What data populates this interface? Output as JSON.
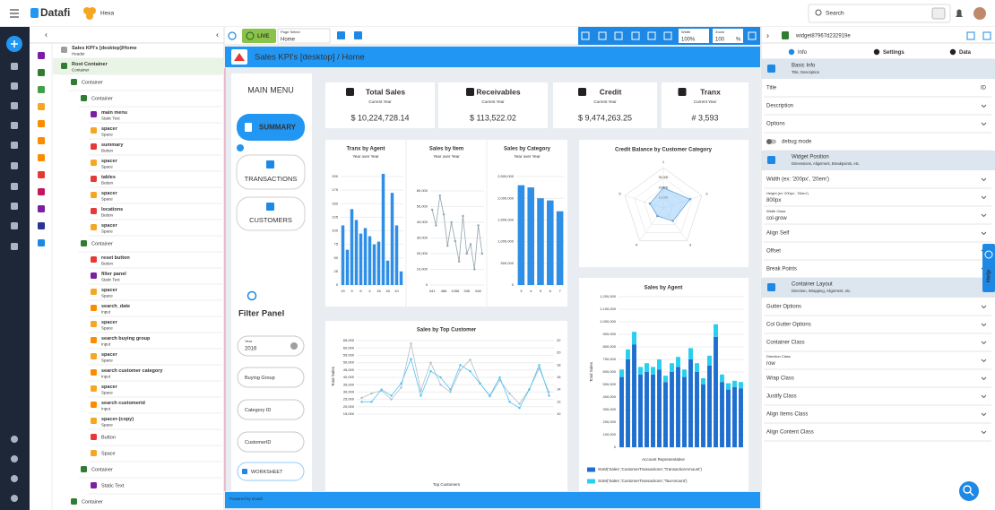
{
  "topbar": {
    "brand": "Datafi",
    "workspace": "Hexa",
    "search": "Search"
  },
  "tree": {
    "items": [
      {
        "name": "Sales KPI's [desktop]/Home",
        "type": "Header",
        "level": 0,
        "color": "#9e9e9e"
      },
      {
        "name": "Root Container",
        "type": "Container",
        "level": 0,
        "color": "#2e7d32"
      },
      {
        "type": "Container",
        "level": 1,
        "color": "#2e7d32"
      },
      {
        "type": "Container",
        "level": 2,
        "color": "#2e7d32"
      },
      {
        "name": "main menu",
        "type": "Static Text",
        "level": 3,
        "color": "#7b1fa2"
      },
      {
        "name": "spacer",
        "type": "Space",
        "level": 3,
        "color": "#f5a623"
      },
      {
        "name": "summary",
        "type": "Button",
        "level": 3,
        "color": "#e53935"
      },
      {
        "name": "spacer",
        "type": "Space",
        "level": 3,
        "color": "#f5a623"
      },
      {
        "name": "tables",
        "type": "Button",
        "level": 3,
        "color": "#e53935"
      },
      {
        "name": "spacer",
        "type": "Space",
        "level": 3,
        "color": "#f5a623"
      },
      {
        "name": "locations",
        "type": "Button",
        "level": 3,
        "color": "#e53935"
      },
      {
        "name": "spacer",
        "type": "Space",
        "level": 3,
        "color": "#f5a623"
      },
      {
        "type": "Container",
        "level": 2,
        "color": "#2e7d32"
      },
      {
        "name": "reset button",
        "type": "Button",
        "level": 3,
        "color": "#e53935"
      },
      {
        "name": "filter panel",
        "type": "Static Text",
        "level": 3,
        "color": "#7b1fa2"
      },
      {
        "name": "spacer",
        "type": "Space",
        "level": 3,
        "color": "#f5a623"
      },
      {
        "name": "search_date",
        "type": "Input",
        "level": 3,
        "color": "#fb8c00"
      },
      {
        "name": "spacer",
        "type": "Space",
        "level": 3,
        "color": "#f5a623"
      },
      {
        "name": "search buying group",
        "type": "Input",
        "level": 3,
        "color": "#fb8c00"
      },
      {
        "name": "spacer",
        "type": "Space",
        "level": 3,
        "color": "#f5a623"
      },
      {
        "name": "search customer category",
        "type": "Input",
        "level": 3,
        "color": "#fb8c00"
      },
      {
        "name": "spacer",
        "type": "Space",
        "level": 3,
        "color": "#f5a623"
      },
      {
        "name": "search customerid",
        "type": "Input",
        "level": 3,
        "color": "#fb8c00"
      },
      {
        "name": "spacer-(copy)",
        "type": "Space",
        "level": 3,
        "color": "#f5a623"
      },
      {
        "type": "Button",
        "level": 3,
        "color": "#e53935"
      },
      {
        "type": "Space",
        "level": 3,
        "color": "#f5a623"
      },
      {
        "type": "Container",
        "level": 2,
        "color": "#2e7d32"
      },
      {
        "type": "Static Text",
        "level": 3,
        "color": "#7b1fa2"
      },
      {
        "type": "Container",
        "level": 1,
        "color": "#2e7d32"
      }
    ]
  },
  "toolbar": {
    "live": "LIVE",
    "page_select_label": "Page Select",
    "page_select": "Home",
    "width_label": "Width",
    "width": "100%",
    "zoom_label": "Zoom",
    "zoom": "100",
    "zoom_unit": "%"
  },
  "canvas": {
    "title": "Sales KPI's [desktop] / Home",
    "footer": "Powered by Datafi"
  },
  "menu": {
    "title": "MAIN MENU",
    "buttons": [
      "SUMMARY",
      "TRANSACTIONS",
      "CUSTOMERS"
    ],
    "filter_title": "Filter Panel",
    "year_label": "Year",
    "year": "2016",
    "filters": [
      "Buying Group",
      "Category ID",
      "CustomerID"
    ],
    "worksheet": "WORKSHEET"
  },
  "kpis": [
    {
      "title": "Total Sales",
      "subtitle": "Current Year",
      "value": "$ 10,224,728.14"
    },
    {
      "title": "Receivables",
      "subtitle": "Current Year",
      "value": "$ 113,522.02"
    },
    {
      "title": "Credit",
      "subtitle": "Current Year",
      "value": "$ 9,474,263.25"
    },
    {
      "title": "Tranx",
      "subtitle": "Current Year",
      "value": "# 3,593"
    }
  ],
  "charts": [
    {
      "type": "bar",
      "title": "Tranx by Agent",
      "subtitle": "Year over Year",
      "color": "#2f8fe6",
      "categories": [
        "15",
        null,
        "9",
        null,
        "6",
        null,
        "4",
        null,
        "16",
        null,
        "18",
        null,
        "10",
        null
      ],
      "values": [
        110,
        65,
        140,
        120,
        95,
        105,
        90,
        75,
        80,
        205,
        45,
        170,
        110,
        25
      ],
      "ylim": [
        0,
        200
      ],
      "yticks": [
        0,
        25,
        50,
        75,
        100,
        125,
        150,
        175,
        200
      ],
      "grid": true
    },
    {
      "type": "line",
      "title": "Sales by Item",
      "subtitle": "Year over Year",
      "categories": [
        "341",
        null,
        null,
        "486",
        null,
        null,
        "1056",
        null,
        null,
        "335",
        null,
        null,
        "540",
        null
      ],
      "series": [
        {
          "color": "#90a4ae",
          "values": [
            48000,
            38000,
            57000,
            45000,
            25000,
            40000,
            28000,
            15000,
            44000,
            20000,
            26000,
            10000,
            38000,
            20000
          ]
        }
      ],
      "ylim": [
        0,
        60000
      ],
      "yticks": [
        0,
        {
          "value": 10000,
          "label": "10,000"
        },
        {
          "value": 20000,
          "label": "20,000"
        },
        {
          "value": 30000,
          "label": "30,000"
        },
        {
          "value": 40000,
          "label": "40,000"
        },
        {
          "value": 50000,
          "label": "50,000"
        },
        {
          "value": 60000,
          "label": "60,000"
        }
      ],
      "grid": true
    },
    {
      "type": "bar",
      "title": "Sales by Category",
      "subtitle": "Year over Year",
      "color": "#2f8fe6",
      "categories": [
        "3",
        "4",
        "5",
        "6",
        "7"
      ],
      "values": [
        2300000,
        2250000,
        2000000,
        1950000,
        1700000
      ],
      "ylim": [
        0,
        2500000
      ],
      "yticks": [
        0,
        {
          "value": 500000,
          "label": "500,000"
        },
        {
          "value": 1000000,
          "label": "1,000,000"
        },
        {
          "value": 1500000,
          "label": "1,500,000"
        },
        {
          "value": 2000000,
          "label": "2,000,000"
        },
        {
          "value": 2500000,
          "label": "2,500,000"
        }
      ],
      "grid": true
    },
    {
      "type": "radar",
      "title": "Credit Balance by Customer Category",
      "color": "#90caf9",
      "categories": [
        "1",
        "2",
        "3",
        "4",
        "5"
      ],
      "values": [
        20000,
        28000,
        16000,
        10000,
        14000
      ],
      "rlim": [
        0,
        40000
      ],
      "rticks": [
        {
          "value": 10000,
          "label": "10,000"
        },
        {
          "value": 20000,
          "label": "20,000"
        },
        {
          "value": 30000,
          "label": "30,000"
        }
      ]
    },
    {
      "type": "line",
      "title": "Sales by Top Customer",
      "xlabel": "Top Customers",
      "ylabel": "Total Sales",
      "series": [
        {
          "color": "#b0bec5",
          "values": [
            26000,
            29000,
            31000,
            25000,
            33000,
            63000,
            31000,
            50000,
            35000,
            30000,
            45000,
            52000,
            36000,
            27000,
            38000,
            29000,
            22000,
            32000,
            46000,
            30000
          ]
        },
        {
          "color": "#4fc3f7",
          "axis": "y2",
          "values": [
            12,
            12,
            14,
            13,
            15,
            19,
            13,
            17,
            16,
            14,
            18,
            17,
            15,
            13,
            16,
            12,
            11,
            14,
            18,
            13
          ]
        }
      ],
      "ylim": [
        15000,
        65000
      ],
      "yticks": [
        {
          "value": 15000,
          "label": "15,000"
        },
        {
          "value": 20000,
          "label": "20,000"
        },
        {
          "value": 25000,
          "label": "25,000"
        },
        {
          "value": 30000,
          "label": "30,000"
        },
        {
          "value": 35000,
          "label": "35,000"
        },
        {
          "value": 40000,
          "label": "40,000"
        },
        {
          "value": 45000,
          "label": "45,000"
        },
        {
          "value": 50000,
          "label": "50,000"
        },
        {
          "value": 55000,
          "label": "55,000"
        },
        {
          "value": 60000,
          "label": "60,000"
        },
        {
          "value": 65000,
          "label": "65,000"
        }
      ],
      "y2lim": [
        10,
        22
      ],
      "y2ticks": [
        10,
        12,
        14,
        16,
        18,
        20,
        22
      ],
      "grid": true
    },
    {
      "type": "bar",
      "title": "Sales by Agent",
      "xlabel": "Account Representative",
      "ylabel": "Total Sales",
      "legend": "bottom",
      "series": [
        {
          "name": "SUM('Sales','CustomerTransactions','TransactionAmount')",
          "color": "#1e6fd0",
          "values": [
            560000,
            700000,
            820000,
            580000,
            600000,
            580000,
            620000,
            520000,
            600000,
            640000,
            560000,
            700000,
            600000,
            500000,
            650000,
            880000,
            520000,
            460000,
            480000,
            470000
          ]
        },
        {
          "name": "SUM('Sales','CustomerTransactions','TaxAmount')",
          "color": "#26d0ee",
          "values": [
            60000,
            80000,
            100000,
            60000,
            70000,
            60000,
            80000,
            50000,
            70000,
            80000,
            60000,
            90000,
            70000,
            50000,
            80000,
            100000,
            60000,
            50000,
            50000,
            50000
          ]
        }
      ],
      "ylim": [
        0,
        1200000
      ],
      "yticks": [
        0,
        {
          "value": 100000,
          "label": "100,000"
        },
        {
          "value": 200000,
          "label": "200,000"
        },
        {
          "value": 300000,
          "label": "300,000"
        },
        {
          "value": 400000,
          "label": "400,000"
        },
        {
          "value": 500000,
          "label": "500,000"
        },
        {
          "value": 600000,
          "label": "600,000"
        },
        {
          "value": 700000,
          "label": "700,000"
        },
        {
          "value": 800000,
          "label": "800,000"
        },
        {
          "value": 900000,
          "label": "900,000"
        },
        {
          "value": 1000000,
          "label": "1,000,000"
        },
        {
          "value": 1100000,
          "label": "1,100,000"
        },
        {
          "value": 1200000,
          "label": "1,200,000"
        }
      ],
      "grid": true
    }
  ],
  "inspector": {
    "widget_id": "widget87967d232919e",
    "tabs": [
      "Info",
      "Settings",
      "Data"
    ],
    "help": "Help",
    "rows": [
      {
        "label": "Basic Info",
        "sub": "Title, Description"
      },
      {
        "label": "Title",
        "right": "ID"
      },
      {
        "label": "Description"
      },
      {
        "label": "Options"
      },
      {
        "label": "debug mode",
        "toggle": false
      },
      {
        "label": "Widget Position",
        "sub": "Dimensions, Alignment, Breakpoints, etc."
      },
      {
        "label": "Width (ex: '200px', '20em')"
      },
      {
        "label": "Height (ex '200px', '20em')",
        "value": "800px"
      },
      {
        "label": "Width Class",
        "value": "col-grow"
      },
      {
        "label": "Align Self"
      },
      {
        "label": "Offset"
      },
      {
        "label": "Break Points"
      },
      {
        "label": "Container Layout",
        "sub": "Direction, Wrapping, Alignment, etc."
      },
      {
        "label": "Gutter Options"
      },
      {
        "label": "Col Gutter Options"
      },
      {
        "label": "Container Class"
      },
      {
        "label": "Direction Class",
        "value": "row"
      },
      {
        "label": "Wrap Class"
      },
      {
        "label": "Justify Class"
      },
      {
        "label": "Align Items Class"
      },
      {
        "label": "Align Content Class"
      }
    ]
  }
}
